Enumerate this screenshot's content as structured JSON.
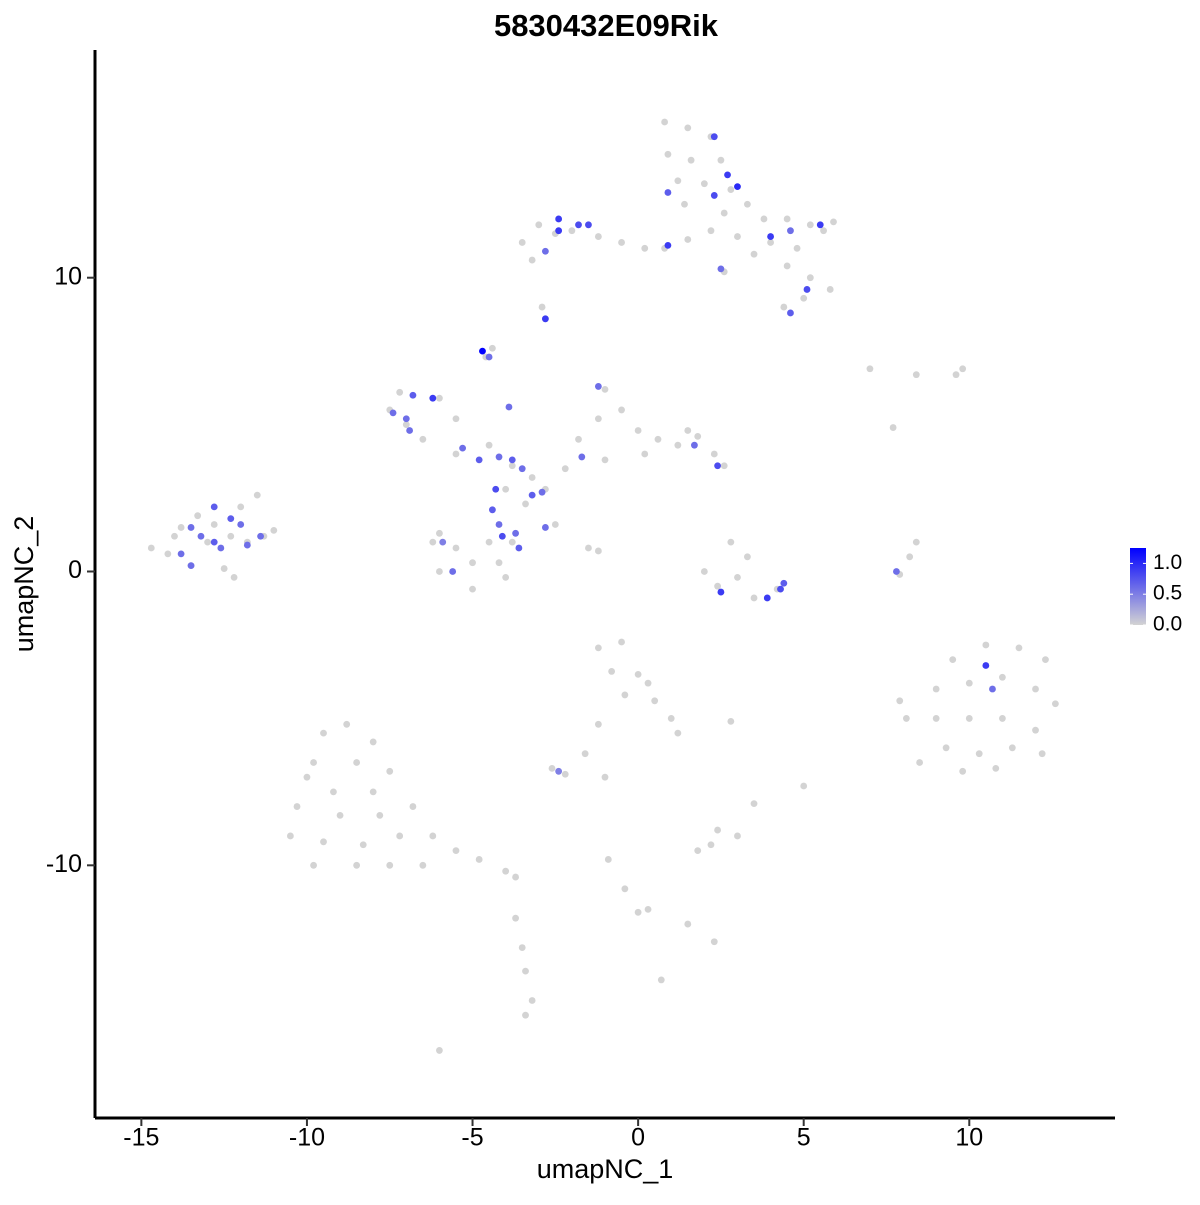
{
  "chart_data": {
    "type": "scatter",
    "title": "5830432E09Rik",
    "x_label": "umapNC_1",
    "y_label": "umapNC_2",
    "xlim": [
      -16.4,
      14.4
    ],
    "ylim": [
      -18.6,
      17.75
    ],
    "xticks": [
      -15,
      -10,
      -5,
      0,
      5,
      10
    ],
    "yticks": [
      -10,
      0,
      10
    ],
    "grid": false,
    "colors": [
      "#d3d3d3",
      "#0000ff"
    ],
    "colorlim": [
      0,
      1.25
    ],
    "colorticks": [
      {
        "value": 0,
        "label": "0.0"
      },
      0.5,
      {
        "value": 1,
        "label": "1.0"
      }
    ],
    "x": [
      0.8,
      1.5,
      2.2,
      0.9,
      1.6,
      2.5,
      1.2,
      2.0,
      2.8,
      3.3,
      3.8,
      4.5,
      5.2,
      5.6,
      4.0,
      4.8,
      3.0,
      2.2,
      1.5,
      0.8,
      4.5,
      5.2,
      5.8,
      5.0,
      4.4,
      3.5,
      2.6,
      1.4,
      2.6,
      5.9,
      -3.5,
      -3.0,
      -2.5,
      -2.0,
      -1.2,
      -0.5,
      0.2,
      -3.2,
      -2.9,
      -2.8,
      -4.6,
      -4.4,
      -5.5,
      -4.5,
      -3.8,
      -3.2,
      -4.0,
      -3.4,
      -2.8,
      -2.2,
      -1.8,
      -1.2,
      -1.0,
      -0.5,
      0.0,
      0.6,
      1.2,
      1.8,
      2.3,
      2.6,
      -7.5,
      -7.0,
      -6.5,
      -6.0,
      -5.5,
      -7.2,
      -6.0,
      -5.5,
      -5.0,
      -4.5,
      -4.2,
      -6.0,
      -5.0,
      -4.0,
      -3.8,
      -6.2,
      -2.5,
      -1.5,
      -1.2,
      1.5,
      0.2,
      -1.0,
      -14.7,
      -14.2,
      -13.8,
      -13.3,
      -12.8,
      -12.3,
      -11.8,
      -11.3,
      -11.0,
      -12.0,
      -11.5,
      -13.5,
      -12.5,
      -12.2,
      -14.0,
      -13.0,
      2.8,
      3.3,
      3.0,
      2.4,
      3.5,
      4.2,
      2.0,
      7.9,
      8.2,
      8.4,
      7.0,
      8.4,
      9.6,
      9.8,
      7.7,
      9.5,
      10.5,
      11.5,
      12.3,
      9.0,
      10.0,
      11.0,
      12.0,
      12.6,
      9.0,
      10.0,
      11.0,
      12.0,
      9.3,
      10.3,
      11.3,
      8.5,
      9.8,
      10.8,
      7.9,
      8.1,
      12.2,
      -1.2,
      -0.5,
      -0.8,
      0.0,
      0.3,
      -0.4,
      0.5,
      1.0,
      1.2,
      -1.2,
      -1.6,
      2.8,
      -2.6,
      -2.2,
      -1.0,
      5.0,
      3.5,
      2.4,
      2.2,
      1.8,
      3.0,
      -0.9,
      -0.4,
      0.0,
      0.3,
      1.5,
      2.3,
      -3.7,
      -3.5,
      -3.4,
      -3.2,
      -3.4,
      -6.0,
      0.7,
      -9.5,
      -8.8,
      -8.0,
      -9.8,
      -8.5,
      -7.5,
      -9.2,
      -8.0,
      -10.3,
      -9.0,
      -7.8,
      -6.8,
      -10.5,
      -9.5,
      -8.3,
      -7.2,
      -9.8,
      -8.5,
      -7.5,
      -6.2,
      -5.5,
      -4.8,
      -4.0,
      -3.7,
      -6.5,
      -10.0,
      2.3,
      2.7,
      3.0,
      0.9,
      2.3,
      4.0,
      5.5,
      4.6,
      0.9,
      2.5,
      5.1,
      4.6,
      -2.4,
      -2.4,
      -1.8,
      -1.5,
      -2.8,
      -2.8,
      -4.7,
      -4.5,
      -5.3,
      -4.8,
      -4.2,
      -3.8,
      -3.5,
      -4.3,
      -3.2,
      -2.9,
      -4.4,
      -4.2,
      -4.1,
      -3.7,
      -3.6,
      -2.8,
      -6.9,
      -7.0,
      -6.8,
      -6.2,
      -7.4,
      -1.2,
      1.7,
      2.4,
      -5.9,
      -5.6,
      -3.9,
      -1.7,
      -12.8,
      -12.3,
      -13.5,
      -13.2,
      -12.8,
      -12.0,
      -11.4,
      -13.8,
      -13.5,
      -12.6,
      -11.8,
      2.5,
      3.9,
      4.3,
      4.4,
      7.8,
      10.5,
      10.7,
      -2.4
    ],
    "y": [
      15.3,
      15.1,
      14.8,
      14.2,
      14.0,
      14.0,
      13.3,
      13.2,
      13.0,
      12.5,
      12.0,
      12.0,
      11.8,
      11.6,
      11.2,
      11.0,
      11.4,
      11.6,
      11.3,
      11.0,
      10.4,
      10.0,
      9.6,
      9.3,
      9.0,
      10.8,
      10.2,
      12.5,
      12.2,
      11.9,
      11.2,
      11.8,
      11.5,
      11.6,
      11.4,
      11.2,
      11.0,
      10.6,
      9.0,
      8.6,
      7.3,
      7.6,
      4.0,
      4.3,
      3.6,
      3.2,
      2.8,
      2.3,
      2.8,
      3.5,
      4.5,
      5.2,
      6.2,
      5.5,
      4.8,
      4.5,
      4.3,
      4.6,
      4.0,
      3.6,
      5.5,
      5.0,
      4.5,
      5.9,
      5.2,
      6.1,
      1.3,
      0.8,
      0.3,
      1.0,
      0.3,
      0.0,
      -0.6,
      -0.2,
      1.0,
      1.0,
      1.6,
      0.8,
      0.7,
      4.8,
      4.0,
      3.8,
      0.8,
      0.6,
      1.5,
      1.9,
      1.6,
      1.2,
      1.0,
      1.2,
      1.4,
      2.2,
      2.6,
      0.2,
      0.1,
      -0.2,
      1.2,
      1.0,
      1.0,
      0.5,
      -0.2,
      -0.5,
      -0.9,
      -0.6,
      0.0,
      -0.1,
      0.5,
      1.0,
      6.9,
      6.7,
      6.7,
      6.9,
      4.9,
      -3.0,
      -2.5,
      -2.6,
      -3.0,
      -4.0,
      -3.8,
      -3.6,
      -4.0,
      -4.5,
      -5.0,
      -5.0,
      -5.0,
      -5.4,
      -6.0,
      -6.2,
      -6.0,
      -6.5,
      -6.8,
      -6.7,
      -4.4,
      -5.0,
      -6.2,
      -2.6,
      -2.4,
      -3.4,
      -3.5,
      -3.8,
      -4.2,
      -4.4,
      -5.0,
      -5.5,
      -5.2,
      -6.2,
      -5.1,
      -6.7,
      -6.9,
      -7.0,
      -7.3,
      -7.9,
      -8.8,
      -9.3,
      -9.5,
      -9.0,
      -9.8,
      -10.8,
      -11.6,
      -11.5,
      -12.0,
      -12.6,
      -11.8,
      -12.8,
      -13.6,
      -14.6,
      -15.1,
      -16.3,
      -13.9,
      -5.5,
      -5.2,
      -5.8,
      -6.5,
      -6.5,
      -6.8,
      -7.5,
      -7.5,
      -8.0,
      -8.3,
      -8.3,
      -8.0,
      -9.0,
      -9.2,
      -9.3,
      -9.0,
      -10.0,
      -10.0,
      -10.0,
      -9.0,
      -9.5,
      -9.8,
      -10.2,
      -10.4,
      -10.0,
      -7.0,
      14.8,
      13.5,
      13.1,
      12.9,
      12.8,
      11.4,
      11.8,
      11.6,
      11.1,
      10.3,
      9.6,
      8.8,
      12.0,
      11.6,
      11.8,
      11.8,
      10.9,
      8.6,
      7.5,
      7.3,
      4.2,
      3.8,
      3.9,
      3.8,
      3.5,
      2.8,
      2.6,
      2.7,
      2.1,
      1.6,
      1.2,
      1.3,
      0.8,
      1.5,
      4.8,
      5.2,
      6.0,
      5.9,
      5.4,
      6.3,
      4.3,
      3.6,
      1.0,
      0.0,
      5.6,
      3.9,
      2.2,
      1.8,
      1.5,
      1.2,
      1.0,
      1.6,
      1.2,
      0.6,
      0.2,
      0.8,
      0.9,
      -0.7,
      -0.9,
      -0.6,
      -0.4,
      0.0,
      -3.2,
      -4.0,
      -6.8
    ],
    "values": [
      0,
      0,
      0,
      0,
      0,
      0,
      0,
      0,
      0,
      0,
      0,
      0,
      0,
      0,
      0,
      0,
      0,
      0,
      0,
      0,
      0,
      0,
      0,
      0,
      0,
      0,
      0,
      0,
      0,
      0,
      0,
      0,
      0,
      0,
      0,
      0,
      0,
      0,
      0,
      0,
      0,
      0,
      0,
      0,
      0,
      0,
      0,
      0,
      0,
      0,
      0,
      0,
      0,
      0,
      0,
      0,
      0,
      0,
      0,
      0,
      0,
      0,
      0,
      0,
      0,
      0,
      0,
      0,
      0,
      0,
      0,
      0,
      0,
      0,
      0,
      0,
      0,
      0,
      0,
      0,
      0,
      0,
      0,
      0,
      0,
      0,
      0,
      0,
      0,
      0,
      0,
      0,
      0,
      0,
      0,
      0,
      0,
      0,
      0,
      0,
      0,
      0,
      0,
      0,
      0,
      0,
      0,
      0,
      0,
      0,
      0,
      0,
      0,
      0,
      0,
      0,
      0,
      0,
      0,
      0,
      0,
      0,
      0,
      0,
      0,
      0,
      0,
      0,
      0,
      0,
      0,
      0,
      0,
      0,
      0,
      0,
      0,
      0,
      0,
      0,
      0,
      0,
      0,
      0,
      0,
      0,
      0,
      0,
      0,
      0,
      0,
      0,
      0,
      0,
      0,
      0,
      0,
      0,
      0,
      0,
      0,
      0,
      0,
      0,
      0,
      0,
      0,
      0,
      0,
      0,
      0,
      0,
      0,
      0,
      0,
      0,
      0,
      0,
      0,
      0,
      0,
      0,
      0,
      0,
      0,
      0,
      0,
      0,
      0,
      0,
      0,
      0,
      0,
      0,
      0,
      0.8,
      0.9,
      1.0,
      0.7,
      0.8,
      0.9,
      0.9,
      0.6,
      0.9,
      0.6,
      0.8,
      0.7,
      0.9,
      0.9,
      0.8,
      0.8,
      0.6,
      0.9,
      1.25,
      0.6,
      0.6,
      0.7,
      0.6,
      0.7,
      0.6,
      0.8,
      0.7,
      0.6,
      0.7,
      0.6,
      0.8,
      0.6,
      0.7,
      0.6,
      0.6,
      0.6,
      0.7,
      0.9,
      0.6,
      0.6,
      0.6,
      0.8,
      0.5,
      0.6,
      0.6,
      0.6,
      0.7,
      0.7,
      0.6,
      0.6,
      0.7,
      0.6,
      0.6,
      0.6,
      0.6,
      0.6,
      0.6,
      0.9,
      0.9,
      0.8,
      0.7,
      0.6,
      0.9,
      0.6,
      0.5
    ]
  }
}
